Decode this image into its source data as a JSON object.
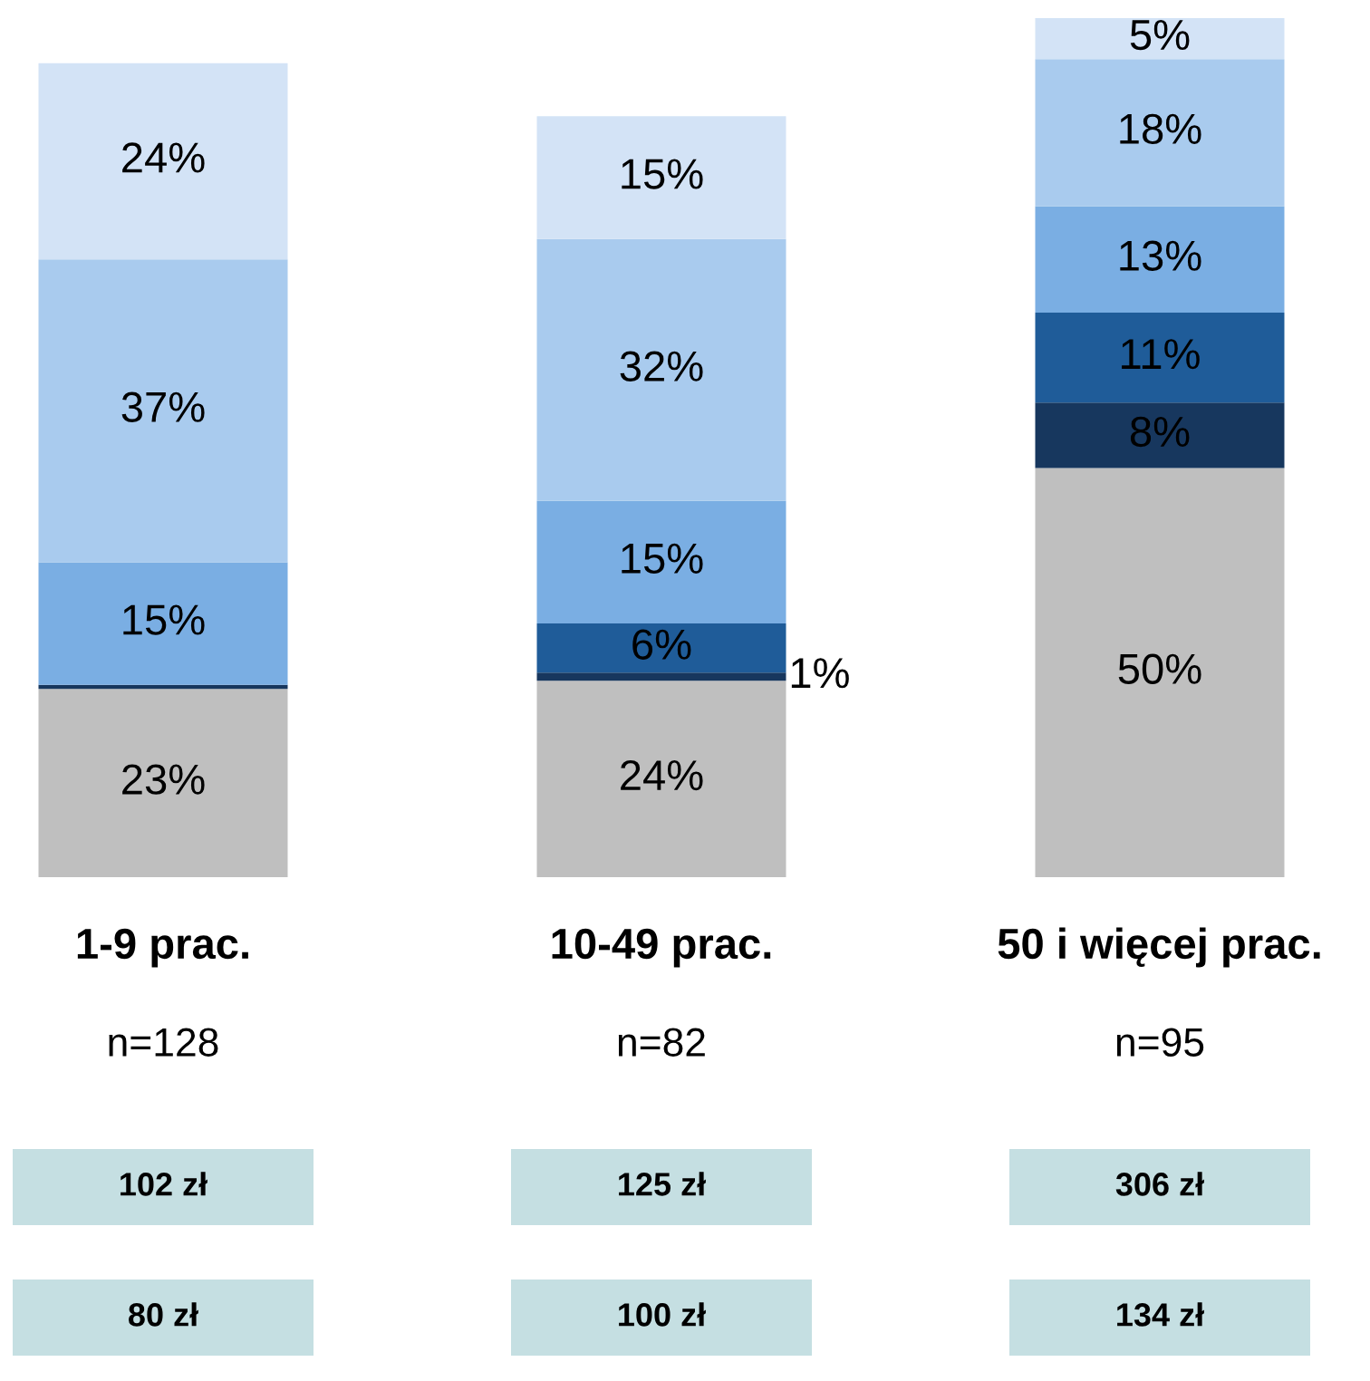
{
  "chart_data": {
    "type": "bar",
    "stacked": true,
    "categories": [
      "1-9 prac.",
      "10-49 prac.",
      "50 i więcej prac."
    ],
    "series": [
      {
        "color": "#bfbfbf",
        "values": [
          23,
          24,
          50
        ],
        "value_labels": [
          "23%",
          "24%",
          "50%"
        ]
      },
      {
        "color": "#17375e",
        "values": [
          0.5,
          1,
          8
        ],
        "value_labels": [
          null,
          "1%",
          "8%"
        ]
      },
      {
        "color": "#1f5c99",
        "values": [
          null,
          6,
          11
        ],
        "value_labels": [
          null,
          "6%",
          "11%"
        ]
      },
      {
        "color": "#7aaee3",
        "values": [
          15,
          15,
          13
        ],
        "value_labels": [
          "15%",
          "15%",
          "13%"
        ]
      },
      {
        "color": "#a9cbee",
        "values": [
          37,
          32,
          18
        ],
        "value_labels": [
          "37%",
          "32%",
          "18%"
        ]
      },
      {
        "color": "#d3e3f6",
        "values": [
          24,
          15,
          5
        ],
        "value_labels": [
          "24%",
          "15%",
          "5%"
        ]
      }
    ],
    "annotations": [
      "n=128",
      "n=82",
      "n=95",
      "102 zł",
      "125 zł",
      "306 zł",
      "80 zł",
      "100 zł",
      "134 zł"
    ],
    "grid": false,
    "legend": false
  }
}
